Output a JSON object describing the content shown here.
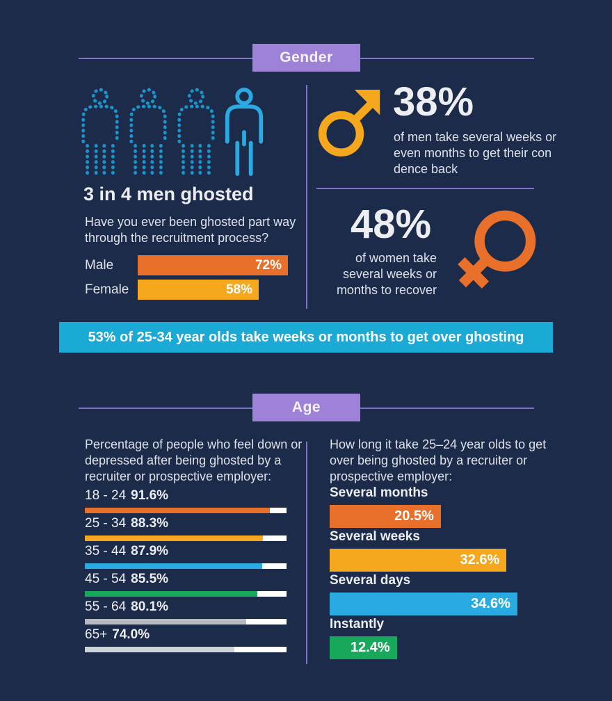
{
  "colors": {
    "bg": "#1d2b4a",
    "badge": "#9d82d8",
    "line": "#8374cb",
    "bright": "#eceef1",
    "text": "#dde1e8",
    "orange": "#e8702a",
    "amber": "#f5a71d",
    "blue": "#29abe2",
    "dotblue": "#1995cb",
    "banner": "#1ba9d6",
    "green": "#17a85b",
    "gray": "#b6bbc1",
    "graylight": "#ced3d7"
  },
  "gender": {
    "badge": "Gender",
    "headline": "3 in 4 men ghosted",
    "question": "Have you ever been ghosted part way through the recruitment process?",
    "bars": [
      {
        "label": "Male",
        "value": 72,
        "display": "72%",
        "color": "#e8702a"
      },
      {
        "label": "Female",
        "value": 58,
        "display": "58%",
        "color": "#f5a71d"
      }
    ],
    "men_stat": {
      "value": "38%",
      "text": "of men take several weeks or even months to get their con dence back"
    },
    "women_stat": {
      "value": "48%",
      "text": "of women take several weeks or months to recover"
    }
  },
  "banner": {
    "text": "53% of 25-34 year olds take weeks or months to get over ghosting"
  },
  "age": {
    "badge": "Age",
    "left_intro": "Percentage of people who feel down or depressed after being ghosted by a recruiter or prospective employer:",
    "depressed_rows": [
      {
        "range": "18 - 24",
        "value": 91.6,
        "display": "91.6%",
        "color": "#e8702a"
      },
      {
        "range": "25 - 34",
        "value": 88.3,
        "display": "88.3%",
        "color": "#f5a71d"
      },
      {
        "range": "35 - 44",
        "value": 87.9,
        "display": "87.9%",
        "color": "#29abe2"
      },
      {
        "range": "45 - 54",
        "value": 85.5,
        "display": "85.5%",
        "color": "#17a85b"
      },
      {
        "range": "55 - 64",
        "value": 80.1,
        "display": "80.1%",
        "color": "#b6bbc1"
      },
      {
        "range": "65+",
        "value": 74.0,
        "display": "74.0%",
        "color": "#ced3d7"
      }
    ],
    "right_intro": "How long it take 25–24 year olds to get over being ghosted by a recruiter or prospective employer:",
    "recovery_rows": [
      {
        "label": "Several months",
        "value": 20.5,
        "display": "20.5%",
        "color": "#e8702a"
      },
      {
        "label": "Several weeks",
        "value": 32.6,
        "display": "32.6%",
        "color": "#f5a71d"
      },
      {
        "label": "Several days",
        "value": 34.6,
        "display": "34.6%",
        "color": "#29abe2"
      },
      {
        "label": "Instantly",
        "value": 12.4,
        "display": "12.4%",
        "color": "#17a85b"
      }
    ]
  },
  "chart_data": [
    {
      "type": "bar",
      "title": "Have you ever been ghosted part way through the recruitment process?",
      "categories": [
        "Male",
        "Female"
      ],
      "values": [
        72,
        58
      ],
      "value_labels": [
        "72%",
        "58%"
      ],
      "colors": [
        "#e8702a",
        "#f5a71d"
      ],
      "orientation": "horizontal",
      "annotations": [
        "3 in 4 men ghosted",
        "38% of men take several weeks or even months to get their con dence back",
        "48% of women take several weeks or months to recover",
        "53% of 25-34 year olds take weeks or months to get over ghosting"
      ]
    },
    {
      "type": "bar",
      "title": "Percentage of people who feel down or depressed after being ghosted by a recruiter or prospective employer",
      "categories": [
        "18 - 24",
        "25 - 34",
        "35 - 44",
        "45 - 54",
        "55 - 64",
        "65+"
      ],
      "values": [
        91.6,
        88.3,
        87.9,
        85.5,
        80.1,
        74.0
      ],
      "value_labels": [
        "91.6%",
        "88.3%",
        "87.9%",
        "85.5%",
        "80.1%",
        "74.0%"
      ],
      "colors": [
        "#e8702a",
        "#f5a71d",
        "#29abe2",
        "#17a85b",
        "#b6bbc1",
        "#ced3d7"
      ],
      "orientation": "horizontal",
      "xlim": [
        0,
        100
      ]
    },
    {
      "type": "bar",
      "title": "How long it take 25–24 year olds to get over being ghosted by a recruiter or prospective employer",
      "categories": [
        "Several months",
        "Several weeks",
        "Several days",
        "Instantly"
      ],
      "values": [
        20.5,
        32.6,
        34.6,
        12.4
      ],
      "value_labels": [
        "20.5%",
        "32.6%",
        "34.6%",
        "12.4%"
      ],
      "colors": [
        "#e8702a",
        "#f5a71d",
        "#29abe2",
        "#17a85b"
      ],
      "orientation": "horizontal"
    }
  ]
}
